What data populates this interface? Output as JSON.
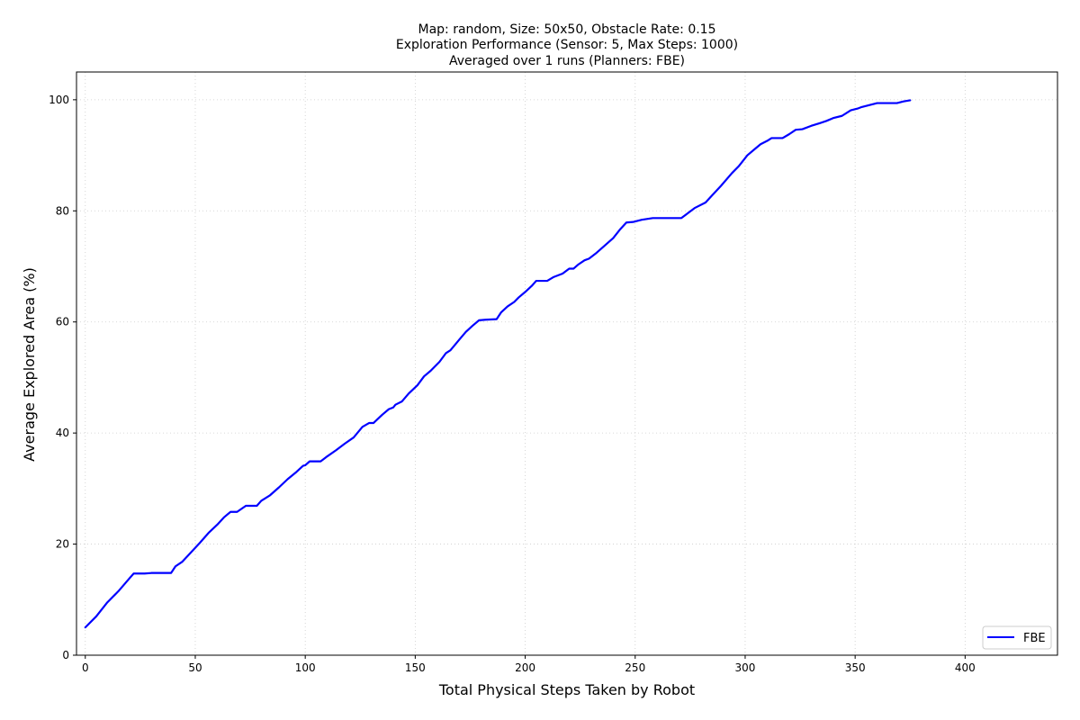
{
  "chart_data": {
    "type": "line",
    "title_lines": [
      "Map: random, Size: 50x50, Obstacle Rate: 0.15",
      "Exploration Performance (Sensor: 5, Max Steps: 1000)",
      "Averaged over 1 runs (Planners: FBE)"
    ],
    "xlabel": "Total Physical Steps Taken by Robot",
    "ylabel": "Average Explored Area (%)",
    "xlim": [
      -4,
      442
    ],
    "ylim": [
      0,
      105
    ],
    "x_ticks": [
      0,
      50,
      100,
      150,
      200,
      250,
      300,
      350,
      400
    ],
    "y_ticks": [
      0,
      20,
      40,
      60,
      80,
      100
    ],
    "grid": true,
    "legend_position": "lower-right",
    "series": [
      {
        "name": "FBE",
        "color": "#0000ff",
        "points": [
          [
            0,
            5
          ],
          [
            5,
            7
          ],
          [
            10,
            9.5
          ],
          [
            15,
            11.5
          ],
          [
            20,
            13.8
          ],
          [
            22,
            14.7
          ],
          [
            27,
            14.7
          ],
          [
            30,
            14.8
          ],
          [
            39,
            14.8
          ],
          [
            41,
            16
          ],
          [
            44,
            16.8
          ],
          [
            48,
            18.5
          ],
          [
            52,
            20.2
          ],
          [
            56,
            22
          ],
          [
            60,
            23.5
          ],
          [
            63,
            24.8
          ],
          [
            66,
            25.8
          ],
          [
            69,
            25.8
          ],
          [
            73,
            26.9
          ],
          [
            78,
            26.9
          ],
          [
            80,
            27.8
          ],
          [
            84,
            28.8
          ],
          [
            88,
            30.2
          ],
          [
            92,
            31.7
          ],
          [
            96,
            33
          ],
          [
            99,
            34.1
          ],
          [
            100,
            34.2
          ],
          [
            102,
            34.9
          ],
          [
            107,
            34.9
          ],
          [
            110,
            35.8
          ],
          [
            114,
            36.9
          ],
          [
            118,
            38.1
          ],
          [
            122,
            39.2
          ],
          [
            126,
            41.1
          ],
          [
            129,
            41.8
          ],
          [
            131,
            41.8
          ],
          [
            135,
            43.3
          ],
          [
            138,
            44.3
          ],
          [
            140,
            44.6
          ],
          [
            141,
            45.1
          ],
          [
            144,
            45.7
          ],
          [
            147,
            47.1
          ],
          [
            151,
            48.6
          ],
          [
            154,
            50.2
          ],
          [
            157,
            51.2
          ],
          [
            161,
            52.8
          ],
          [
            164,
            54.4
          ],
          [
            166,
            54.9
          ],
          [
            170,
            56.8
          ],
          [
            173,
            58.2
          ],
          [
            176,
            59.3
          ],
          [
            179,
            60.3
          ],
          [
            182,
            60.4
          ],
          [
            187,
            60.5
          ],
          [
            189,
            61.7
          ],
          [
            192,
            62.8
          ],
          [
            195,
            63.6
          ],
          [
            197,
            64.4
          ],
          [
            200,
            65.4
          ],
          [
            203,
            66.5
          ],
          [
            205,
            67.4
          ],
          [
            210,
            67.4
          ],
          [
            213,
            68.1
          ],
          [
            217,
            68.7
          ],
          [
            220,
            69.6
          ],
          [
            222,
            69.6
          ],
          [
            224,
            70.3
          ],
          [
            227,
            71.1
          ],
          [
            229,
            71.4
          ],
          [
            232,
            72.3
          ],
          [
            236,
            73.7
          ],
          [
            240,
            75.1
          ],
          [
            243,
            76.6
          ],
          [
            246,
            77.9
          ],
          [
            249,
            78
          ],
          [
            253,
            78.4
          ],
          [
            258,
            78.7
          ],
          [
            271,
            78.7
          ],
          [
            274,
            79.6
          ],
          [
            277,
            80.5
          ],
          [
            282,
            81.5
          ],
          [
            285,
            82.8
          ],
          [
            289,
            84.5
          ],
          [
            294,
            86.8
          ],
          [
            297,
            88
          ],
          [
            301,
            90
          ],
          [
            304,
            91
          ],
          [
            307,
            92
          ],
          [
            310,
            92.6
          ],
          [
            312,
            93.1
          ],
          [
            317,
            93.1
          ],
          [
            320,
            93.8
          ],
          [
            323,
            94.6
          ],
          [
            326,
            94.7
          ],
          [
            330,
            95.3
          ],
          [
            334,
            95.8
          ],
          [
            337,
            96.2
          ],
          [
            340,
            96.7
          ],
          [
            344,
            97.1
          ],
          [
            348,
            98.1
          ],
          [
            351,
            98.4
          ],
          [
            353,
            98.7
          ],
          [
            357,
            99.1
          ],
          [
            360,
            99.4
          ],
          [
            369,
            99.4
          ],
          [
            372,
            99.7
          ],
          [
            375,
            99.9
          ]
        ]
      }
    ]
  }
}
